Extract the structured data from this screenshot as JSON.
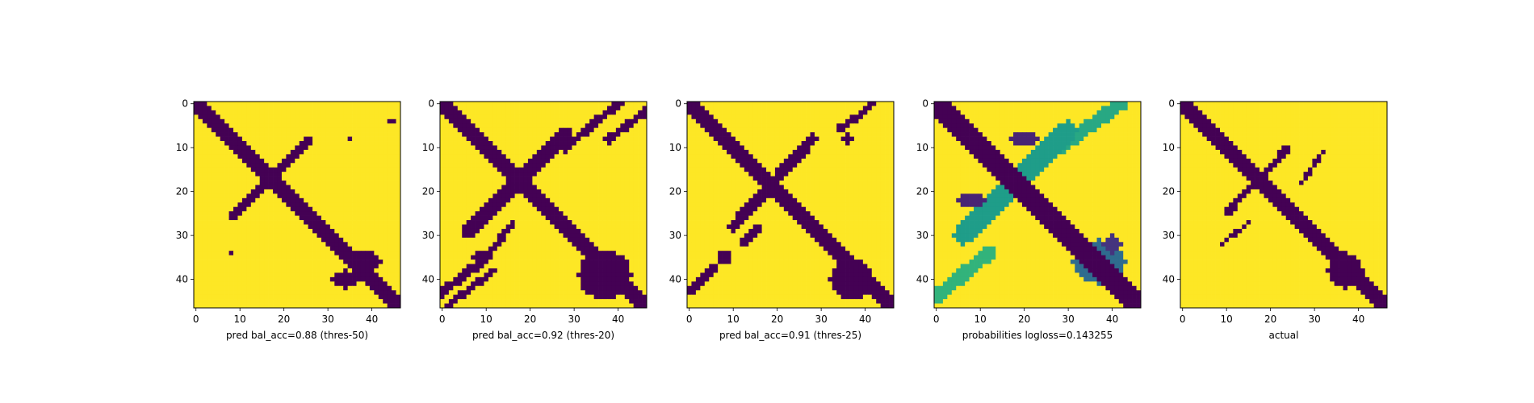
{
  "colors": {
    "low": "#440154",
    "high": "#fde725"
  },
  "chart_data": [
    {
      "type": "heatmap",
      "xlabel": "pred bal_acc=0.88 (thres-50)",
      "grid": false,
      "xlim": [
        -0.5,
        46.5
      ],
      "ylim": [
        46.5,
        -0.5
      ],
      "xticks": [
        0,
        10,
        20,
        30,
        40
      ],
      "yticks": [
        0,
        10,
        20,
        30,
        40
      ],
      "size": 47,
      "shapes": [
        {
          "kind": "band",
          "from": [
            0,
            0
          ],
          "to": [
            46,
            46
          ],
          "width": 1.6,
          "value": 0
        },
        {
          "kind": "band",
          "from": [
            8,
            26
          ],
          "to": [
            26,
            8
          ],
          "width": 0.9,
          "value": 0
        },
        {
          "kind": "blob",
          "center": [
            38,
            36
          ],
          "radii": [
            4,
            2.5
          ],
          "value": 0
        },
        {
          "kind": "blob",
          "center": [
            34,
            40
          ],
          "radii": [
            3,
            2
          ],
          "value": 0
        },
        {
          "kind": "dot",
          "at": [
            44,
            4
          ],
          "value": 0
        },
        {
          "kind": "dot",
          "at": [
            35,
            8
          ],
          "value": 0
        },
        {
          "kind": "dot",
          "at": [
            45,
            4
          ],
          "value": 0
        },
        {
          "kind": "dot",
          "at": [
            8,
            34
          ],
          "value": 0
        }
      ]
    },
    {
      "type": "heatmap",
      "xlabel": "pred bal_acc=0.92 (thres-20)",
      "grid": false,
      "xlim": [
        -0.5,
        46.5
      ],
      "ylim": [
        46.5,
        -0.5
      ],
      "xticks": [
        0,
        10,
        20,
        30,
        40
      ],
      "yticks": [
        0,
        10,
        20,
        30,
        40
      ],
      "size": 47,
      "shapes": [
        {
          "kind": "band",
          "from": [
            0,
            0
          ],
          "to": [
            46,
            46
          ],
          "width": 2.0,
          "value": 0
        },
        {
          "kind": "band",
          "from": [
            6,
            29
          ],
          "to": [
            28,
            7
          ],
          "width": 1.6,
          "value": 0
        },
        {
          "kind": "band",
          "from": [
            0,
            43
          ],
          "to": [
            10,
            35
          ],
          "width": 1.0,
          "value": 0
        },
        {
          "kind": "band",
          "from": [
            28,
            10
          ],
          "to": [
            40,
            0
          ],
          "width": 1.0,
          "value": 0
        },
        {
          "kind": "band",
          "from": [
            38,
            8
          ],
          "to": [
            46,
            2
          ],
          "width": 1.0,
          "value": 0
        },
        {
          "kind": "band",
          "from": [
            1,
            46
          ],
          "to": [
            12,
            38
          ],
          "width": 0.8,
          "value": 0
        },
        {
          "kind": "band",
          "from": [
            8,
            38
          ],
          "to": [
            16,
            27
          ],
          "width": 0.8,
          "value": 0
        },
        {
          "kind": "blob",
          "center": [
            37,
            39
          ],
          "radii": [
            6,
            5.5
          ],
          "value": 0
        },
        {
          "kind": "blob",
          "center": [
            9,
            35
          ],
          "radii": [
            2,
            1.5
          ],
          "value": 0
        }
      ]
    },
    {
      "type": "heatmap",
      "xlabel": "pred bal_acc=0.91 (thres-25)",
      "grid": false,
      "xlim": [
        -0.5,
        46.5
      ],
      "ylim": [
        46.5,
        -0.5
      ],
      "xticks": [
        0,
        10,
        20,
        30,
        40
      ],
      "yticks": [
        0,
        10,
        20,
        30,
        40
      ],
      "size": 47,
      "shapes": [
        {
          "kind": "band",
          "from": [
            0,
            0
          ],
          "to": [
            46,
            46
          ],
          "width": 1.8,
          "value": 0
        },
        {
          "kind": "band",
          "from": [
            10,
            28
          ],
          "to": [
            28,
            8
          ],
          "width": 1.3,
          "value": 0
        },
        {
          "kind": "band",
          "from": [
            0,
            43
          ],
          "to": [
            6,
            37
          ],
          "width": 0.9,
          "value": 0
        },
        {
          "kind": "band",
          "from": [
            34,
            6
          ],
          "to": [
            42,
            0
          ],
          "width": 0.8,
          "value": 0
        },
        {
          "kind": "band",
          "from": [
            12,
            32
          ],
          "to": [
            16,
            28
          ],
          "width": 0.8,
          "value": 0
        },
        {
          "kind": "blob",
          "center": [
            37,
            40
          ],
          "radii": [
            5,
            4.5
          ],
          "value": 0
        },
        {
          "kind": "blob",
          "center": [
            8,
            35
          ],
          "radii": [
            1.6,
            1.3
          ],
          "value": 0
        },
        {
          "kind": "blob",
          "center": [
            36,
            8
          ],
          "radii": [
            1.2,
            1.6
          ],
          "value": 0
        }
      ]
    },
    {
      "type": "heatmap",
      "xlabel": "probabilities logloss=0.143255",
      "grid": false,
      "xlim": [
        -0.5,
        46.5
      ],
      "ylim": [
        46.5,
        -0.5
      ],
      "xticks": [
        0,
        10,
        20,
        30,
        40
      ],
      "yticks": [
        0,
        10,
        20,
        30,
        40
      ],
      "size": 47,
      "value_range": [
        0,
        1
      ],
      "shapes": [
        {
          "kind": "band",
          "from": [
            0,
            0
          ],
          "to": [
            46,
            46
          ],
          "width": 2.6,
          "value": 0
        },
        {
          "kind": "band",
          "from": [
            6,
            30
          ],
          "to": [
            30,
            6
          ],
          "width": 2.2,
          "value": 0.55
        },
        {
          "kind": "band",
          "from": [
            0,
            44
          ],
          "to": [
            12,
            34
          ],
          "width": 1.6,
          "value": 0.65
        },
        {
          "kind": "band",
          "from": [
            28,
            10
          ],
          "to": [
            42,
            0
          ],
          "width": 1.6,
          "value": 0.6
        },
        {
          "kind": "blob",
          "center": [
            20,
            8
          ],
          "radii": [
            3,
            1.5
          ],
          "value": 0.1
        },
        {
          "kind": "blob",
          "center": [
            8,
            22
          ],
          "radii": [
            3,
            1.5
          ],
          "value": 0.1
        },
        {
          "kind": "blob",
          "center": [
            37,
            36
          ],
          "radii": [
            6,
            5
          ],
          "value": 0.35
        },
        {
          "kind": "blob",
          "center": [
            40,
            32
          ],
          "radii": [
            2,
            2
          ],
          "value": 0.15
        }
      ]
    },
    {
      "type": "heatmap",
      "xlabel": "actual",
      "grid": false,
      "xlim": [
        -0.5,
        46.5
      ],
      "ylim": [
        46.5,
        -0.5
      ],
      "xticks": [
        0,
        10,
        20,
        30,
        40
      ],
      "yticks": [
        0,
        10,
        20,
        30,
        40
      ],
      "size": 47,
      "shapes": [
        {
          "kind": "band",
          "from": [
            0,
            0
          ],
          "to": [
            46,
            46
          ],
          "width": 1.5,
          "value": 0
        },
        {
          "kind": "band",
          "from": [
            10,
            25
          ],
          "to": [
            24,
            10
          ],
          "width": 0.8,
          "value": 0
        },
        {
          "kind": "band",
          "from": [
            9,
            32
          ],
          "to": [
            15,
            27
          ],
          "width": 0.5,
          "value": 0
        },
        {
          "kind": "band",
          "from": [
            27,
            18
          ],
          "to": [
            32,
            11
          ],
          "width": 0.5,
          "value": 0
        },
        {
          "kind": "blob",
          "center": [
            37,
            38
          ],
          "radii": [
            4,
            4
          ],
          "value": 0
        },
        {
          "kind": "blob",
          "center": [
            17,
            17
          ],
          "radii": [
            2,
            2
          ],
          "value": 0
        }
      ]
    }
  ]
}
